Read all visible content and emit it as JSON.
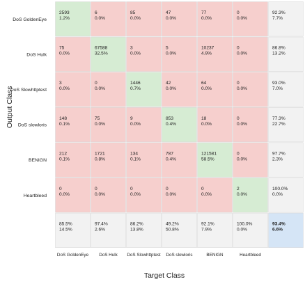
{
  "chart_data": {
    "type": "heatmap",
    "title": "",
    "xlabel": "Target Class",
    "ylabel": "Output Class",
    "categories": [
      "DoS GoldenEye",
      "DoS Hulk",
      "DoS Slowhttptest",
      "DoS slowloris",
      "BENIGN",
      "Heartbleed"
    ],
    "cells": [
      [
        {
          "count": "2593",
          "pct": "1.2%"
        },
        {
          "count": "6",
          "pct": "0.0%"
        },
        {
          "count": "85",
          "pct": "0.0%"
        },
        {
          "count": "47",
          "pct": "0.0%"
        },
        {
          "count": "77",
          "pct": "0.0%"
        },
        {
          "count": "0",
          "pct": "0.0%"
        }
      ],
      [
        {
          "count": "75",
          "pct": "0.0%"
        },
        {
          "count": "67588",
          "pct": "32.5%"
        },
        {
          "count": "3",
          "pct": "0.0%"
        },
        {
          "count": "5",
          "pct": "0.0%"
        },
        {
          "count": "10237",
          "pct": "4.9%"
        },
        {
          "count": "0",
          "pct": "0.0%"
        }
      ],
      [
        {
          "count": "3",
          "pct": "0.0%"
        },
        {
          "count": "0",
          "pct": "0.0%"
        },
        {
          "count": "1446",
          "pct": "0.7%"
        },
        {
          "count": "42",
          "pct": "0.0%"
        },
        {
          "count": "64",
          "pct": "0.0%"
        },
        {
          "count": "0",
          "pct": "0.0%"
        }
      ],
      [
        {
          "count": "148",
          "pct": "0.1%"
        },
        {
          "count": "75",
          "pct": "0.0%"
        },
        {
          "count": "9",
          "pct": "0.0%"
        },
        {
          "count": "853",
          "pct": "0.4%"
        },
        {
          "count": "18",
          "pct": "0.0%"
        },
        {
          "count": "0",
          "pct": "0.0%"
        }
      ],
      [
        {
          "count": "212",
          "pct": "0.1%"
        },
        {
          "count": "1721",
          "pct": "0.8%"
        },
        {
          "count": "134",
          "pct": "0.1%"
        },
        {
          "count": "787",
          "pct": "0.4%"
        },
        {
          "count": "121581",
          "pct": "58.5%"
        },
        {
          "count": "0",
          "pct": "0.0%"
        }
      ],
      [
        {
          "count": "0",
          "pct": "0.0%"
        },
        {
          "count": "0",
          "pct": "0.0%"
        },
        {
          "count": "0",
          "pct": "0.0%"
        },
        {
          "count": "0",
          "pct": "0.0%"
        },
        {
          "count": "0",
          "pct": "0.0%"
        },
        {
          "count": "2",
          "pct": "0.0%"
        }
      ]
    ],
    "row_summary": [
      [
        "92.3%",
        "7.7%"
      ],
      [
        "86.8%",
        "13.2%"
      ],
      [
        "93.0%",
        "7.0%"
      ],
      [
        "77.3%",
        "22.7%"
      ],
      [
        "97.7%",
        "2.3%"
      ],
      [
        "100.0%",
        "0.0%"
      ]
    ],
    "col_summary": [
      [
        "85.5%",
        "14.5%"
      ],
      [
        "97.4%",
        "2.6%"
      ],
      [
        "86.2%",
        "13.8%"
      ],
      [
        "49.2%",
        "50.8%"
      ],
      [
        "92.1%",
        "7.9%"
      ],
      [
        "100.0%",
        "0.0%"
      ]
    ],
    "overall": [
      "93.4%",
      "6.6%"
    ],
    "colors": {
      "correct": "#d6ecd3",
      "incorrect": "#f6cfcd",
      "summary": "#f2f2f2",
      "overall": "#d5e5f6",
      "grid": "#ffffff",
      "border": "#d6d6d6",
      "text": "#222222"
    }
  }
}
